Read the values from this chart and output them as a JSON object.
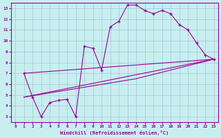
{
  "xlabel": "Windchill (Refroidissement éolien,°C)",
  "bg_color": "#c8eef0",
  "grid_color": "#a0c8d0",
  "line_color": "#990099",
  "xlim": [
    -0.5,
    23.5
  ],
  "ylim": [
    2.5,
    13.5
  ],
  "xticks": [
    0,
    1,
    2,
    3,
    4,
    5,
    6,
    7,
    8,
    9,
    10,
    11,
    12,
    13,
    14,
    15,
    16,
    17,
    18,
    19,
    20,
    21,
    22,
    23
  ],
  "yticks": [
    3,
    4,
    5,
    6,
    7,
    8,
    9,
    10,
    11,
    12,
    13
  ],
  "line1_x": [
    1,
    2,
    3,
    4,
    5,
    6,
    7,
    8,
    9,
    10,
    11,
    12,
    13,
    14,
    15,
    16,
    17,
    18,
    19,
    20,
    21,
    22,
    23
  ],
  "line1_y": [
    7.0,
    4.8,
    3.0,
    4.3,
    4.5,
    4.6,
    3.0,
    9.5,
    9.3,
    7.3,
    11.3,
    11.8,
    13.3,
    13.3,
    12.8,
    12.5,
    12.8,
    12.5,
    11.5,
    11.0,
    9.8,
    8.7,
    8.3
  ],
  "line2_x": [
    1,
    23
  ],
  "line2_y": [
    7.0,
    8.3
  ],
  "line3_x": [
    1,
    14,
    23
  ],
  "line3_y": [
    4.8,
    6.5,
    8.3
  ],
  "line4_x": [
    1,
    23
  ],
  "line4_y": [
    4.8,
    8.3
  ]
}
